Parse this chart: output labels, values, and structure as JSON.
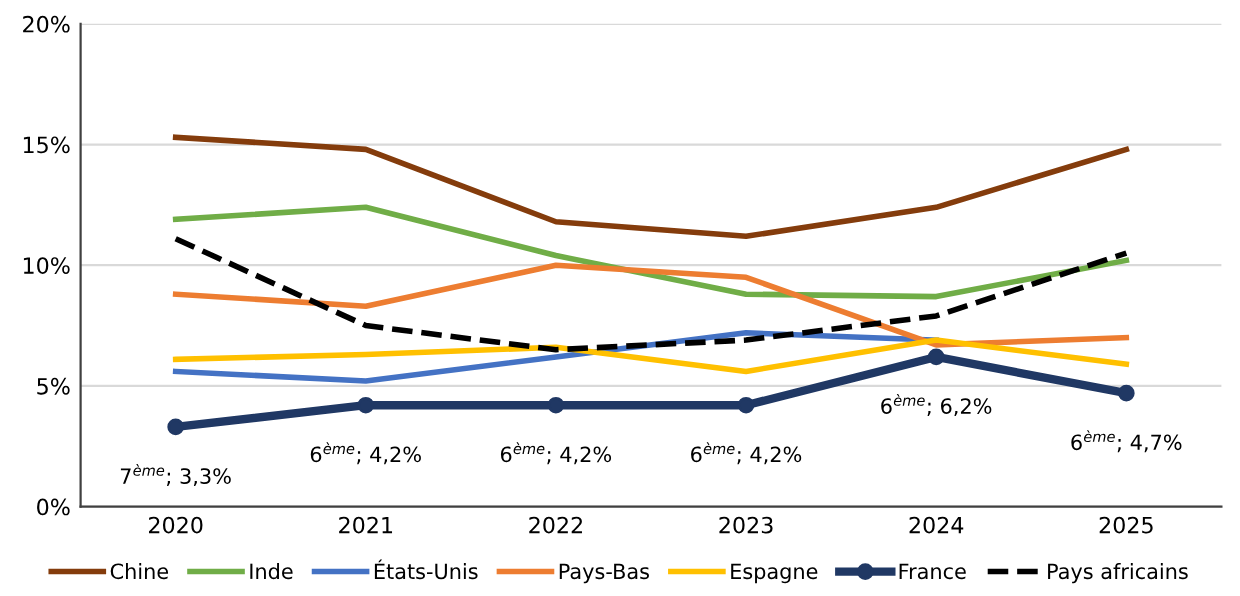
{
  "chart_data": {
    "type": "line",
    "categories": [
      "2020",
      "2021",
      "2022",
      "2023",
      "2024",
      "2025"
    ],
    "ylim": [
      0,
      20
    ],
    "yticks": [
      {
        "value": 0,
        "label": "0%"
      },
      {
        "value": 5,
        "label": "5%"
      },
      {
        "value": 10,
        "label": "10%"
      },
      {
        "value": 15,
        "label": "15%"
      },
      {
        "value": 20,
        "label": "20%"
      }
    ],
    "grid": "y",
    "legend": "bottom",
    "marker": "none",
    "series": [
      {
        "name": "Chine",
        "color": "#843c0c",
        "values": [
          15.3,
          14.8,
          11.8,
          11.2,
          12.4,
          14.8
        ]
      },
      {
        "name": "Inde",
        "color": "#70ad47",
        "values": [
          11.9,
          12.4,
          10.4,
          8.8,
          8.7,
          10.2
        ]
      },
      {
        "name": "États-Unis",
        "color": "#4472c4",
        "values": [
          5.6,
          5.2,
          6.2,
          7.2,
          6.9,
          null
        ]
      },
      {
        "name": "Pays-Bas",
        "color": "#ed7d31",
        "values": [
          8.8,
          8.3,
          10.0,
          9.5,
          6.7,
          7.0
        ]
      },
      {
        "name": "Espagne",
        "color": "#ffc000",
        "values": [
          6.1,
          6.3,
          6.6,
          5.6,
          6.9,
          5.9
        ]
      },
      {
        "name": "France",
        "color": "#203864",
        "values": [
          3.3,
          4.2,
          4.2,
          4.2,
          6.2,
          4.7
        ],
        "marker": "circle"
      },
      {
        "name": "Pays africains",
        "color": "#000000",
        "values": [
          11.1,
          7.5,
          6.5,
          6.9,
          7.9,
          10.5
        ],
        "line_style": "dashed"
      }
    ],
    "annotations": [
      {
        "text": "7$^{ème}$; 3,3%",
        "x": "2020",
        "y": 3.3
      },
      {
        "text": "6$^{ème}$; 4,2%",
        "x": "2021",
        "y": 4.2
      },
      {
        "text": "6$^{ème}$; 4,2%",
        "x": "2022",
        "y": 4.2
      },
      {
        "text": "6$^{ème}$; 4,2%",
        "x": "2023",
        "y": 4.2
      },
      {
        "text": "6$^{ème}$; 6,2%",
        "x": "2024",
        "y": 6.2
      },
      {
        "text": "6$^{ème}$; 4,7%",
        "x": "2025",
        "y": 4.7
      }
    ]
  }
}
